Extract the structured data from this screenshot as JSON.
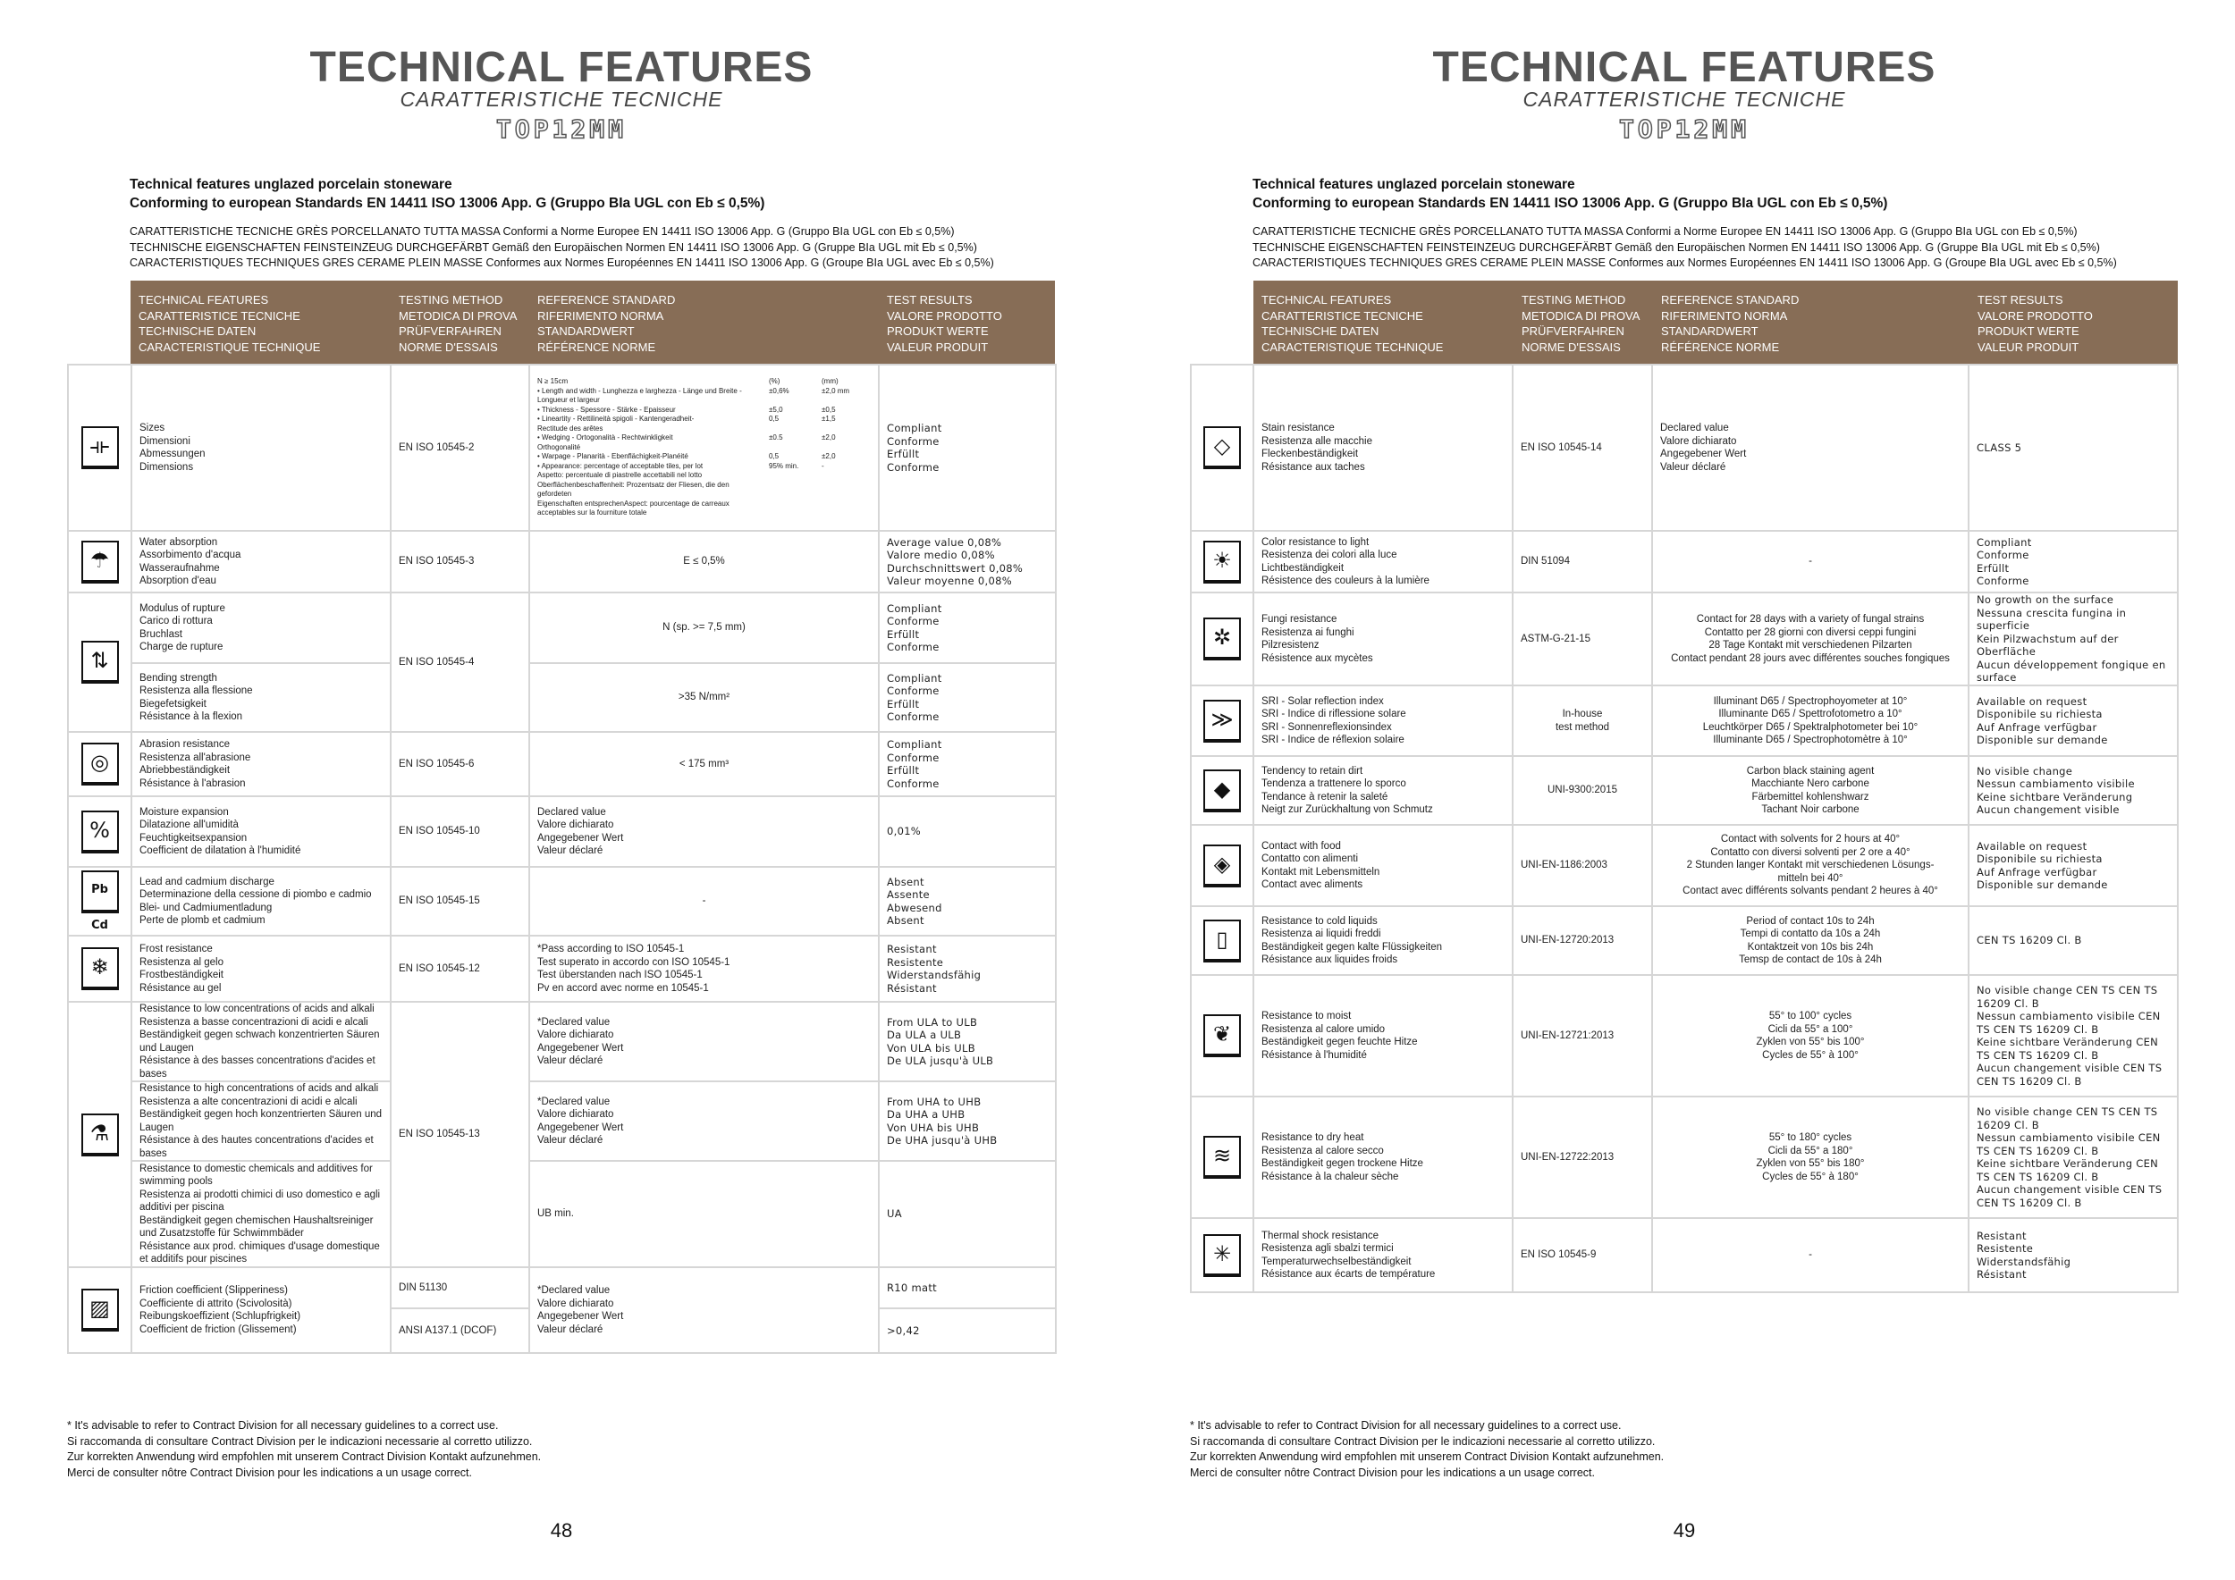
{
  "colors": {
    "header_bg": "#876d56",
    "title": "#555555",
    "grid": "#d6d6d6"
  },
  "left": {
    "title": "TECHNICAL FEATURES",
    "subtitle": "CARATTERISTICHE TECNICHE",
    "brand": "TOP12MM",
    "intro_line1": "Technical features unglazed porcelain stoneware",
    "intro_line2": "Conforming to european Standards EN 14411 ISO 13006 App. G (Gruppo BIa UGL con Eb ≤ 0,5%)",
    "intro_sub": "CARATTERISTICHE TECNICHE GRÈS PORCELLANATO TUTTA MASSA Conformi a Norme Europee EN 14411 ISO 13006 App. G (Gruppo BIa UGL con Eb ≤ 0,5%)\nTECHNISCHE EIGENSCHAFTEN FEINSTEINZEUG DURCHGEFÄRBT Gemäß den Europäischen Normen EN 14411 ISO 13006 App. G (Gruppe BIa UGL mit Eb ≤ 0,5%)\nCARACTERISTIQUES TECHNIQUES GRES CERAME PLEIN MASSE Conformes aux Normes Européennes EN 14411 ISO 13006 App. G (Groupe BIa UGL avec Eb ≤ 0,5%)",
    "header": {
      "feature": "TECHNICAL FEATURES\nCARATTERISTICE TECNICHE\nTECHNISCHE DATEN\nCARACTERISTIQUE TECHNIQUE",
      "method": "TESTING METHOD\nMETODICA DI PROVA\nPRÜFVERFAHREN\nNORME D'ESSAIS",
      "ref": "REFERENCE STANDARD\nRIFERIMENTO NORMA\nSTANDARDWERT\nRÉFÉRENCE NORME",
      "result": "TEST RESULTS\nVALORE PRODOTTO\nPRODUKT WERTE\nVALEUR PRODUIT"
    },
    "rows": [
      {
        "icon": "ruler-icon",
        "feature": "Sizes\nDimensioni\nAbmessungen\nDimensions",
        "method": "EN ISO 10545-2",
        "ref": {
          "header": "N ≥ 15cm",
          "col_pct": "(%)",
          "col_mm": "(mm)",
          "items": [
            {
              "text": "• Length and width - Lunghezza e larghezza - Länge und Breite -\n  Longueur et largeur",
              "pct": "±0,6%",
              "mm": "±2,0 mm"
            },
            {
              "text": "• Thickness - Spessore - Stärke - Epaisseur",
              "pct": "±5,0",
              "mm": "±0,5"
            },
            {
              "text": "• Lineartity - Rettilineità spigoli - Kantengeradheit-\n  Rectitude des arêtes",
              "pct": "0,5",
              "mm": "±1,5"
            },
            {
              "text": "• Wedging - Ortogonalità - Rechtwinkligkeit\n  Orthogonalité",
              "pct": "±0.5",
              "mm": "±2,0"
            },
            {
              "text": "• Warpage - Planarità - Ebenflächigkeit-Planéité",
              "pct": "0,5",
              "mm": "±2,0"
            },
            {
              "text": "• Appearance: percentage of acceptable tiles, per lot\n  Aspetto: percentuale di piastrelle accettabili nel lotto\n  Oberflächenbeschaffenheit: Prozentsatz der Fliesen, die den gefordeten\n  Eigenschaften entsprechenAspect: pourcentage de carreaux acceptables sur la fourniture totale",
              "pct": "95% min.",
              "mm": "-"
            }
          ]
        },
        "result": "Compliant\nConforme\nErfüllt\nConforme"
      },
      {
        "icon": "water-absorption-icon",
        "feature": "Water absorption\nAssorbimento d'acqua\nWasseraufnahme\nAbsorption d'eau",
        "method": "EN ISO 10545-3",
        "ref": "E ≤ 0,5%",
        "result": "Average value 0,08%\nValore medio 0,08%\nDurchschnittswert 0,08%\nValeur moyenne 0,08%"
      },
      {
        "icon": "bending-strength-icon",
        "feature": [
          "Modulus of rupture\nCarico di rottura\nBruchlast\nCharge de rupture",
          "Bending strength\nResistenza alla flessione\nBiegefetsigkeit\nRésistance à la flexion"
        ],
        "method": "EN ISO 10545-4",
        "ref": [
          "N (sp. >= 7,5 mm)",
          ">35 N/mm²"
        ],
        "result": [
          "Compliant\nConforme\nErfüllt\nConforme",
          "Compliant\nConforme\nErfüllt\nConforme"
        ]
      },
      {
        "icon": "abrasion-icon",
        "feature": "Abrasion resistance\nResistenza all'abrasione\nAbriebbeständigkeit\nRésistance à l'abrasion",
        "method": "EN ISO 10545-6",
        "ref": "< 175 mm³",
        "result": "Compliant\nConforme\nErfüllt\nConforme"
      },
      {
        "icon": "moisture-expansion-icon",
        "feature": "Moisture expansion\nDilatazione all'umidità\nFeuchtigkeitsexpansion\nCoefficient de dilatation à l'humidité",
        "method": "EN ISO 10545-10",
        "ref": "Declared value\nValore dichiarato\nAngegebener Wert\nValeur déclaré",
        "result": "0,01%"
      },
      {
        "icon": "lead-cadmium-icon",
        "feature": "Lead and cadmium discharge\nDeterminazione della cessione di piombo e cadmio\nBlei- und Cadmiumentladung\nPerte de plomb et cadmium",
        "method": "EN ISO 10545-15",
        "ref": "-",
        "result": "Absent\nAssente\nAbwesend\nAbsent"
      },
      {
        "icon": "frost-icon",
        "feature": "Frost resistance\nResistenza al gelo\nFrostbeständigkeit\nRésistance au gel",
        "method": "EN ISO 10545-12",
        "ref": "*Pass according to ISO 10545-1\nTest superato in accordo con ISO 10545-1\nTest überstanden nach ISO 10545-1\nPv en accord avec norme en 10545-1",
        "result": "Resistant\nResistente\nWiderstandsfähig\nRésistant"
      },
      {
        "icon": "chemical-resistance-icon",
        "feature": [
          "Resistance to low concentrations of acids and alkali\nResistenza a basse concentrazioni di acidi e alcali\nBeständigkeit gegen schwach konzentrierten Säuren und Laugen\nRésistance à des basses concentrations d'acides et bases",
          "Resistance to high concentrations of acids and alkali\nResistenza a alte concentrazioni di acidi e alcali\nBeständigkeit gegen hoch konzentrierten Säuren und Laugen\nRésistance à des hautes concentrations d'acides et bases",
          "Resistance to domestic chemicals and additives for swimming pools\nResistenza ai prodotti chimici di uso domestico e agli additivi per piscina\nBeständigkeit gegen chemischen Haushaltsreiniger und Zusatzstoffe für Schwimmbäder\nRésistance aux prod. chimiques d'usage domestique et additifs pour piscines"
        ],
        "method": "EN ISO 10545-13",
        "ref": [
          "*Declared value\nValore dichiarato\nAngegebener Wert\nValeur déclaré",
          "*Declared value\nValore dichiarato\nAngegebener Wert\nValeur déclaré",
          "UB min."
        ],
        "result": [
          "From ULA to ULB\nDa ULA a ULB\nVon ULA bis ULB\nDe ULA jusqu'à ULB",
          "From UHA to UHB\nDa UHA a UHB\nVon UHA bis UHB\nDe UHA jusqu'à UHB",
          "UA"
        ]
      },
      {
        "icon": "friction-icon",
        "feature": "Friction coefficient (Slipperiness)\nCoefficiente di attrito (Scivolosità)\nReibungskoeffizient (Schlupfrigkeit)\nCoefficient de friction (Glissement)",
        "method": [
          "DIN 51130",
          "ANSI A137.1 (DCOF)"
        ],
        "ref": "*Declared value\nValore dichiarato\nAngegebener Wert\nValeur déclaré",
        "result": [
          "R10 matt",
          ">0,42"
        ]
      }
    ],
    "footnote": "* It's advisable to refer to Contract Division for all necessary guidelines to a correct use.\n   Si raccomanda di consultare Contract Division per le indicazioni necessarie al corretto utilizzo.\n   Zur korrekten Anwendung wird empfohlen mit unserem Contract Division Kontakt aufzunehmen.\n   Merci de consulter nôtre Contract Division pour les indications a un usage correct.",
    "page_number": "48"
  },
  "right": {
    "title": "TECHNICAL FEATURES",
    "subtitle": "CARATTERISTICHE TECNICHE",
    "brand": "TOP12MM",
    "intro_line1": "Technical features unglazed porcelain stoneware",
    "intro_line2": "Conforming to european Standards EN 14411 ISO 13006 App. G (Gruppo BIa UGL con Eb ≤ 0,5%)",
    "intro_sub": "CARATTERISTICHE TECNICHE GRÈS PORCELLANATO TUTTA MASSA Conformi a Norme Europee EN 14411 ISO 13006 App. G (Gruppo BIa UGL con Eb ≤ 0,5%)\nTECHNISCHE EIGENSCHAFTEN FEINSTEINZEUG DURCHGEFÄRBT Gemäß den Europäischen Normen EN 14411 ISO 13006 App. G (Gruppe BIa UGL mit Eb ≤ 0,5%)\nCARACTERISTIQUES TECHNIQUES GRES CERAME PLEIN MASSE Conformes aux Normes Européennes EN 14411 ISO 13006 App. G (Groupe BIa UGL avec Eb ≤ 0,5%)",
    "header": {
      "feature": "TECHNICAL FEATURES\nCARATTERISTICE TECNICHE\nTECHNISCHE DATEN\nCARACTERISTIQUE TECHNIQUE",
      "method": "TESTING METHOD\nMETODICA DI PROVA\nPRÜFVERFAHREN\nNORME D'ESSAIS",
      "ref": "REFERENCE STANDARD\nRIFERIMENTO NORMA\nSTANDARDWERT\nRÉFÉRENCE NORME",
      "result": "TEST RESULTS\nVALORE PRODOTTO\nPRODUKT WERTE\nVALEUR PRODUIT"
    },
    "rows": [
      {
        "icon": "stain-resistance-icon",
        "feature": "Stain resistance\nResistenza alle macchie\nFleckenbeständigkeit\nRésistance aux taches",
        "method": "EN ISO 10545-14",
        "ref": "Declared value\nValore dichiarato\nAngegebener Wert\nValeur déclaré",
        "result": "CLASS 5"
      },
      {
        "icon": "sun-icon",
        "feature": "Color resistance to light\nResistenza dei colori alla luce\nLichtbeständigkeit\nRésistence des couleurs à la lumière",
        "method": "DIN 51094",
        "ref": "-",
        "result": "Compliant\nConforme\nErfüllt\nConforme"
      },
      {
        "icon": "fungi-icon",
        "feature": "Fungi resistance\nResistenza ai funghi\nPilzresistenz\nRésistence aux mycètes",
        "method": "ASTM-G-21-15",
        "ref": "Contact for 28 days with a variety of fungal strains\nContatto per 28 giorni con diversi ceppi fungini\n28 Tage Kontakt mit verschiedenen Pilzarten\nContact pendant 28 jours avec différentes souches fongiques",
        "result": "No growth on the surface\nNessuna crescita fungina in superficie\nKein Pilzwachstum auf der Oberfläche\nAucun développement fongique en surface"
      },
      {
        "icon": "solar-reflection-icon",
        "feature": "SRI - Solar reflection index\nSRI - Indice di riflessione solare\nSRI - Sonnenreflexionsindex\nSRI - Indice de réflexion solaire",
        "method": "In-house\ntest method",
        "ref": "Illuminant D65 / Spectrophoyometer at 10°\nIlluminante D65 / Spettrofotometro a 10°\nLeuchtkörper D65 / Spektralphotometer bei 10°\nIlluminante D65 / Spectrophotomètre à 10°",
        "result": "Available on request\nDisponibile su richiesta\nAuf Anfrage verfügbar\nDisponible sur demande"
      },
      {
        "icon": "dirt-retention-icon",
        "feature": "Tendency to retain dirt\nTendenza a trattenere lo sporco\nTendance à retenir la saleté\nNeigt zur Zurückhaltung von Schmutz",
        "method": "UNI-9300:2015",
        "ref": "Carbon black staining agent\nMacchiante Nero carbone\nFärbemittel kohlenshwarz\nTachant Noir carbone",
        "result": "No visible change\nNessun cambiamento visibile\nKeine sichtbare Veränderung\nAucun changement visible"
      },
      {
        "icon": "food-contact-icon",
        "feature": "Contact with food\nContatto con alimenti\nKontakt mit Lebensmitteln\nContact avec aliments",
        "method": "UNI-EN-1186:2003",
        "ref": "Contact with solvents for 2 hours at 40°\nContatto con diversi solventi per 2 ore a 40°\n2 Stunden langer Kontakt mit verschiedenen Lösungs-\nmitteln bei 40°\nContact avec différents solvants pendant 2 heures à 40°",
        "result": "Available on request\nDisponibile su richiesta\nAuf Anfrage verfügbar\nDisponible sur demande"
      },
      {
        "icon": "cold-liquid-icon",
        "feature": "Resistance to cold liquids\nResistenza ai liquidi freddi\nBeständigkeit gegen kalte Flüssigkeiten\nRésistance aux liquides froids",
        "method": "UNI-EN-12720:2013",
        "ref": "Period of contact 10s to 24h\nTempi di contatto da 10s a 24h\nKontaktzeit von 10s bis 24h\nTemsp de contact de 10s à 24h",
        "result": "CEN TS 16209 Cl. B"
      },
      {
        "icon": "moist-heat-icon",
        "feature": "Resistance to moist\nResistenza al calore umido\nBeständigkeit gegen feuchte Hitze\nRésistance à l'humidité",
        "method": "UNI-EN-12721:2013",
        "ref": "55° to 100° cycles\nCicli da 55° a 100°\nZyklen von 55° bis 100°\nCycles de 55° à 100°",
        "result": "No visible change CEN TS CEN TS 16209 Cl. B\nNessun cambiamento visibile CEN TS CEN TS 16209 Cl. B\nKeine sichtbare Veränderung CEN TS CEN TS 16209 Cl. B\nAucun changement visible CEN TS CEN TS 16209 Cl. B"
      },
      {
        "icon": "dry-heat-icon",
        "feature": "Resistance to dry heat\nResistenza al calore secco\nBeständigkeit gegen trockene Hitze\nRésistance à la chaleur sèche",
        "method": "UNI-EN-12722:2013",
        "ref": "55° to 180° cycles\nCicli da 55° a 180°\nZyklen von 55° bis 180°\nCycles de 55° à 180°",
        "result": "No visible change CEN TS CEN TS 16209 Cl. B\nNessun cambiamento visibile CEN TS CEN TS 16209 Cl. B\nKeine sichtbare Veränderung CEN TS CEN TS 16209 Cl. B\nAucun changement visible CEN TS CEN TS 16209 Cl. B"
      },
      {
        "icon": "thermal-shock-icon",
        "feature": "Thermal shock resistance\nResistenza agli sbalzi termici\nTemperaturwechselbeständigkeit\nRésistance aux écarts de température",
        "method": "EN ISO 10545-9",
        "ref": "-",
        "result": "Resistant\nResistente\nWiderstandsfähig\nRésistant"
      }
    ],
    "footnote": "* It's advisable to refer to Contract Division for all necessary guidelines to a correct use.\n   Si raccomanda di consultare Contract Division per le indicazioni necessarie al corretto utilizzo.\n   Zur korrekten Anwendung wird empfohlen mit unserem Contract Division Kontakt aufzunehmen.\n   Merci de consulter nôtre Contract Division pour les indications a un usage correct.",
    "page_number": "49"
  }
}
